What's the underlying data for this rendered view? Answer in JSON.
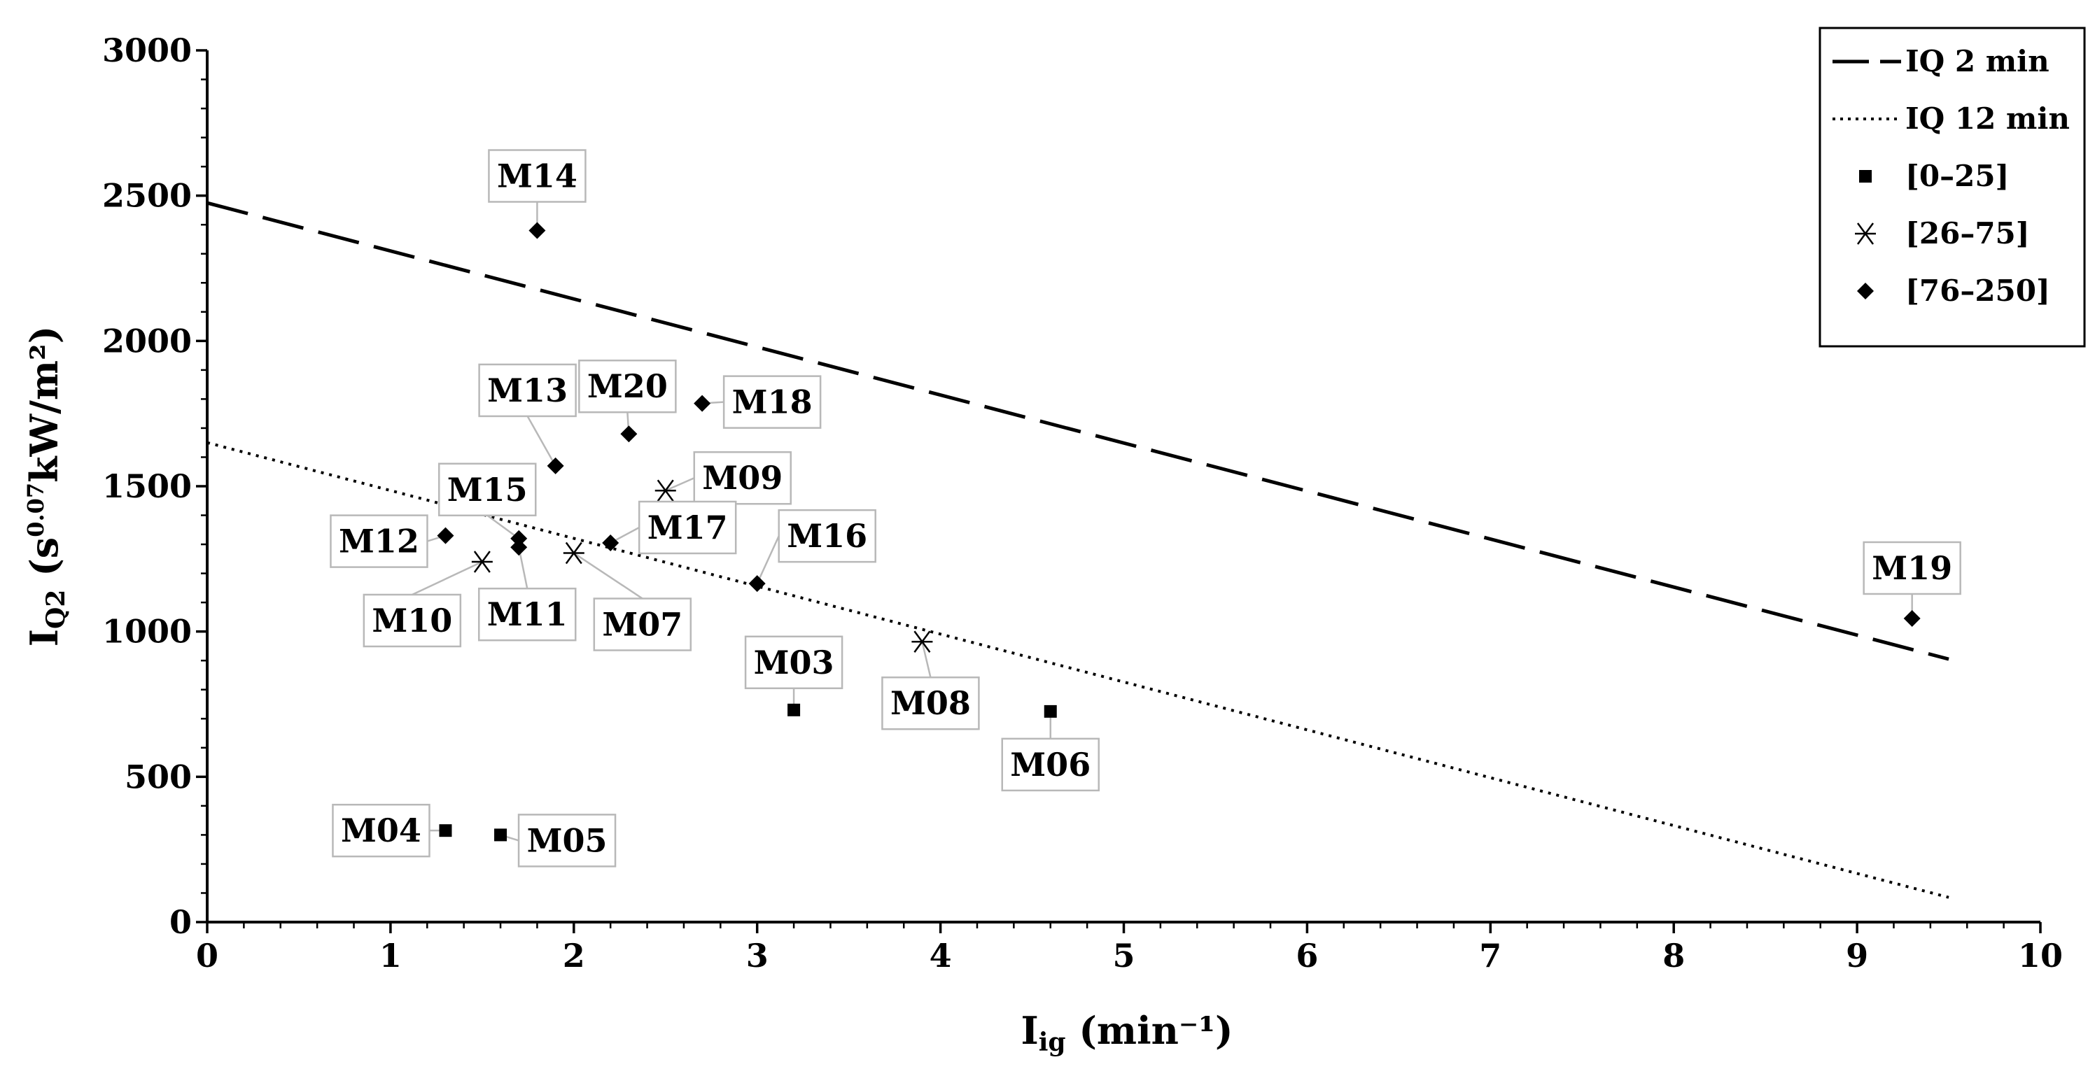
{
  "chart_data": {
    "type": "scatter",
    "title": "",
    "xlabel": {
      "main": "I",
      "sub": "ig",
      "unit": " (min⁻¹)"
    },
    "ylabel": {
      "main": "I",
      "sub": "Q2",
      "pre": " (s",
      "sup": "0.07",
      "unit": "kW/m²)"
    },
    "xlim": [
      0,
      10
    ],
    "ylim": [
      0,
      3000
    ],
    "x_ticks": [
      0,
      1,
      2,
      3,
      4,
      5,
      6,
      7,
      8,
      9,
      10
    ],
    "y_ticks": [
      0,
      500,
      1000,
      1500,
      2000,
      2500,
      3000
    ],
    "grid": false,
    "legend_position": "top-right",
    "lines": [
      {
        "name": "IQ 2 min",
        "style": "dashed",
        "x": [
          0,
          9.5
        ],
        "y": [
          2475,
          905
        ]
      },
      {
        "name": "IQ 12 min",
        "style": "dotted",
        "x": [
          0,
          9.5
        ],
        "y": [
          1650,
          85
        ]
      }
    ],
    "series": [
      {
        "name": "[0–25]",
        "marker": "square",
        "points": [
          {
            "label": "M03",
            "x": 3.2,
            "y": 730
          },
          {
            "label": "M04",
            "x": 1.3,
            "y": 315
          },
          {
            "label": "M05",
            "x": 1.6,
            "y": 300
          },
          {
            "label": "M06",
            "x": 4.6,
            "y": 725
          }
        ]
      },
      {
        "name": "[26–75]",
        "marker": "asterisk",
        "points": [
          {
            "label": "M07",
            "x": 2.0,
            "y": 1270
          },
          {
            "label": "M08",
            "x": 3.9,
            "y": 965
          },
          {
            "label": "M09",
            "x": 2.5,
            "y": 1485
          },
          {
            "label": "M10",
            "x": 1.5,
            "y": 1240
          }
        ]
      },
      {
        "name": "[76–250]",
        "marker": "diamond",
        "points": [
          {
            "label": "M11",
            "x": 1.7,
            "y": 1290
          },
          {
            "label": "M12",
            "x": 1.3,
            "y": 1330
          },
          {
            "label": "M13",
            "x": 1.9,
            "y": 1570
          },
          {
            "label": "M14",
            "x": 1.8,
            "y": 2380
          },
          {
            "label": "M15",
            "x": 1.7,
            "y": 1320
          },
          {
            "label": "M16",
            "x": 3.0,
            "y": 1165
          },
          {
            "label": "M17",
            "x": 2.2,
            "y": 1305
          },
          {
            "label": "M18",
            "x": 2.7,
            "y": 1785
          },
          {
            "label": "M19",
            "x": 9.3,
            "y": 1045
          },
          {
            "label": "M20",
            "x": 2.3,
            "y": 1680
          }
        ]
      }
    ]
  }
}
